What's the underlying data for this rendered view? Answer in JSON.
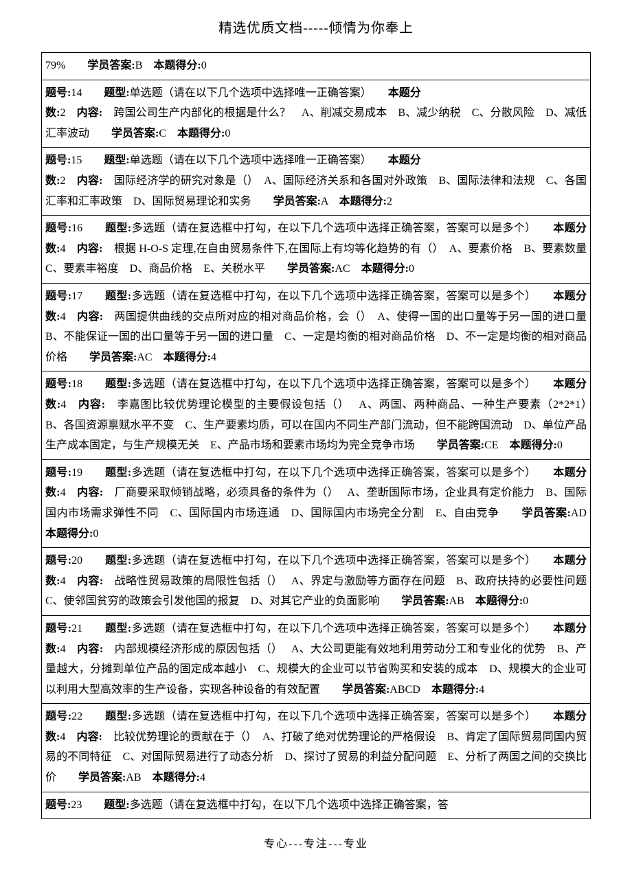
{
  "header": "精选优质文档-----倾情为你奉上",
  "footer": "专心---专注---专业",
  "typography": {
    "body_font": "SimSun / Songti",
    "body_fontsize_pt": 12,
    "header_fontsize_pt": 14,
    "line_height": 1.85,
    "text_color": "#000000",
    "background_color": "#ffffff",
    "border_color": "#000000"
  },
  "labels": {
    "qnum_prefix": "题号:",
    "qtype_prefix": "题型:",
    "qscore_prefix": "本题分数:",
    "content_prefix": "内容:",
    "student_answer_prefix": "学员答案:",
    "earned_prefix": "本题得分:",
    "single_choice_hint": "单选题（请在以下几个选项中选择唯一正确答案）",
    "multi_choice_hint": "多选题（请在复选框中打勾，在以下几个选项中选择正确答案，答案可以是多个）",
    "qscore_inline_prefix": "本题分"
  },
  "rows": [
    {
      "kind": "tail",
      "text_before_answer": "79%　　",
      "answer": "B",
      "earned": "0"
    },
    {
      "kind": "single",
      "num": "14",
      "score": "2",
      "content": "跨国公司生产内部化的根据是什么？　A、削减交易成本　B、减少纳税　C、分散风险　D、减低汇率波动",
      "answer": "C",
      "earned": "0"
    },
    {
      "kind": "single",
      "num": "15",
      "score": "2",
      "content": "国际经济学的研究对象是（）　A、国际经济关系和各国对外政策　B、国际法律和法规　C、各国汇率和汇率政策　D、国际贸易理论和实务",
      "answer": "A",
      "earned": "2"
    },
    {
      "kind": "multi",
      "num": "16",
      "score": "4",
      "content": "根据 H-O-S 定理,在自由贸易条件下,在国际上有均等化趋势的有（）　A、要素价格　B、要素数量　C、要素丰裕度　D、商品价格　E、关税水平",
      "answer": "AC",
      "earned": "0"
    },
    {
      "kind": "multi",
      "num": "17",
      "score": "4",
      "content": "两国提供曲线的交点所对应的相对商品价格，会（）　A、使得一国的出口量等于另一国的进口量　B、不能保证一国的出口量等于另一国的进口量　C、一定是均衡的相对商品价格　D、不一定是均衡的相对商品价格",
      "answer": "AC",
      "earned": "4"
    },
    {
      "kind": "multi",
      "num": "18",
      "score": "4",
      "content": "李嘉图比较优势理论模型的主要假设包括（）　 A、两国、两种商品、一种生产要素（2*2*1）　 B、各国资源禀赋水平不变　C、生产要素均质，可以在国内不同生产部门流动，但不能跨国流动　D、单位产品生产成本固定，与生产规模无关　E、产品市场和要素市场均为完全竞争市场",
      "answer": "CE",
      "earned": "0"
    },
    {
      "kind": "multi",
      "num": "19",
      "score": "4",
      "content": "厂商要采取倾销战略，必须具备的条件为（）　 A、垄断国际市场，企业具有定价能力　B、国际国内市场需求弹性不同　C、国际国内市场连通　D、国际国内市场完全分割　E、自由竞争",
      "answer": "AD",
      "earned": "0"
    },
    {
      "kind": "multi",
      "num": "20",
      "score": "4",
      "content": "战略性贸易政策的局限性包括（）　 A、界定与激励等方面存在问题　B、政府扶持的必要性问题　C、使邻国贫穷的政策会引发他国的报复　D、对其它产业的负面影响",
      "answer": "AB",
      "earned": "0"
    },
    {
      "kind": "multi",
      "num": "21",
      "score": "4",
      "content": "内部规模经济形成的原因包括（）　 A、大公司更能有效地利用劳动分工和专业化的优势　B、产量越大，分摊到单位产品的固定成本越小　C、规模大的企业可以节省购买和安装的成本　D、规模大的企业可以利用大型高效率的生产设备，实现各种设备的有效配置",
      "answer": "ABCD",
      "earned": "4"
    },
    {
      "kind": "multi",
      "num": "22",
      "score": "4",
      "content": "比较优势理论的贡献在于（）　A、打破了绝对优势理论的严格假设　B、肯定了国际贸易同国内贸易的不同特征　C、对国际贸易进行了动态分析　D、探讨了贸易的利益分配问题　E、分析了两国之间的交换比价",
      "answer": "AB",
      "earned": "4"
    },
    {
      "kind": "multi_head",
      "num": "23"
    }
  ]
}
